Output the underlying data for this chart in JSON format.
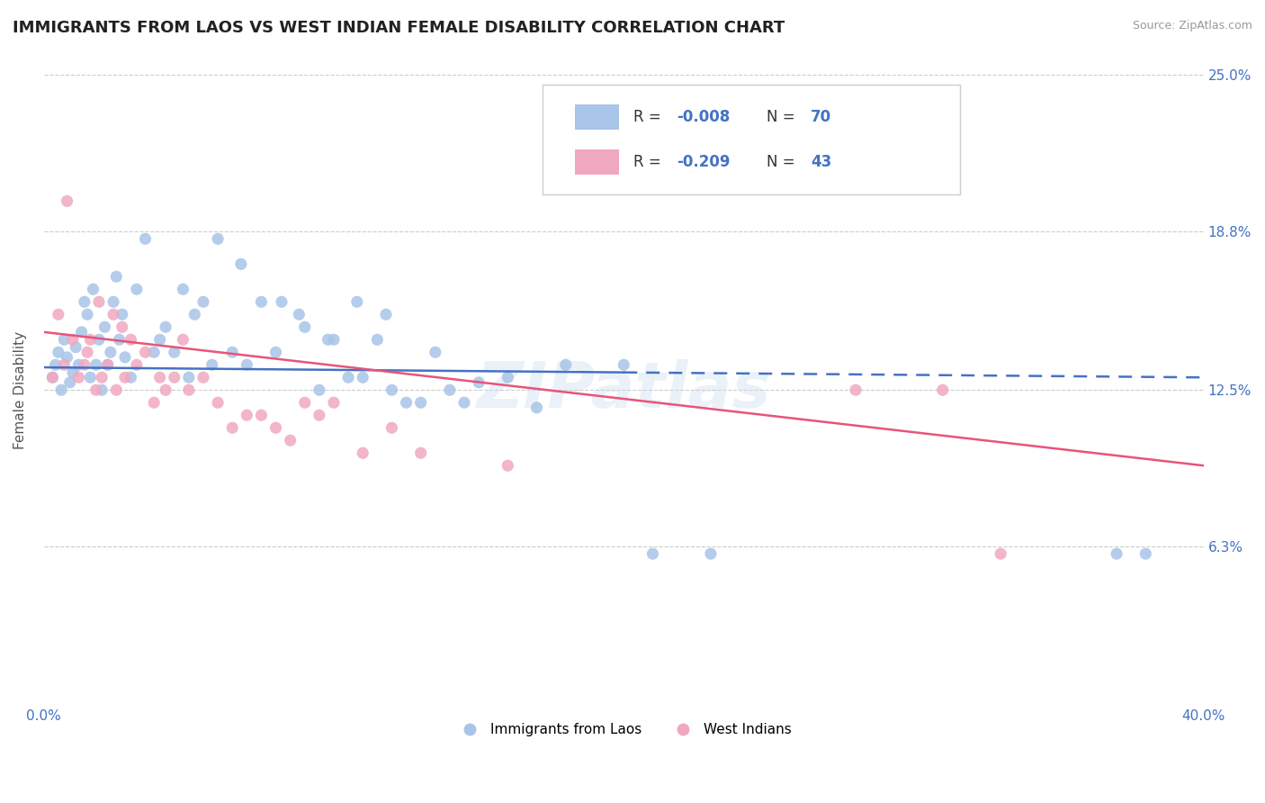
{
  "title": "IMMIGRANTS FROM LAOS VS WEST INDIAN FEMALE DISABILITY CORRELATION CHART",
  "source": "Source: ZipAtlas.com",
  "ylabel": "Female Disability",
  "xlim": [
    0.0,
    0.4
  ],
  "ylim": [
    0.0,
    0.25
  ],
  "yticks": [
    0.063,
    0.125,
    0.188,
    0.25
  ],
  "ytick_labels": [
    "6.3%",
    "12.5%",
    "18.8%",
    "25.0%"
  ],
  "xticks": [
    0.0,
    0.1,
    0.2,
    0.3,
    0.4
  ],
  "xtick_labels": [
    "0.0%",
    "",
    "",
    "",
    "40.0%"
  ],
  "legend_blue_r": "-0.008",
  "legend_blue_n": "70",
  "legend_pink_r": "-0.209",
  "legend_pink_n": "43",
  "blue_color": "#a8c4e8",
  "pink_color": "#f0a8c0",
  "blue_line_color": "#4472c4",
  "pink_line_color": "#e8547a",
  "label_color": "#4472c4",
  "watermark": "ZIPatlas",
  "blue_line_x0": 0.0,
  "blue_line_y0": 0.134,
  "blue_line_x1": 0.4,
  "blue_line_y1": 0.13,
  "blue_line_solid_end": 0.2,
  "pink_line_x0": 0.0,
  "pink_line_y0": 0.148,
  "pink_line_x1": 0.4,
  "pink_line_y1": 0.095,
  "blue_scatter_x": [
    0.003,
    0.004,
    0.005,
    0.006,
    0.007,
    0.008,
    0.009,
    0.01,
    0.011,
    0.012,
    0.013,
    0.014,
    0.015,
    0.016,
    0.017,
    0.018,
    0.019,
    0.02,
    0.021,
    0.022,
    0.023,
    0.024,
    0.025,
    0.026,
    0.027,
    0.028,
    0.03,
    0.032,
    0.035,
    0.038,
    0.04,
    0.042,
    0.045,
    0.048,
    0.05,
    0.052,
    0.055,
    0.058,
    0.06,
    0.065,
    0.068,
    0.07,
    0.075,
    0.08,
    0.082,
    0.088,
    0.09,
    0.095,
    0.098,
    0.1,
    0.105,
    0.108,
    0.11,
    0.115,
    0.118,
    0.12,
    0.125,
    0.13,
    0.135,
    0.14,
    0.145,
    0.15,
    0.16,
    0.17,
    0.18,
    0.2,
    0.21,
    0.23,
    0.37,
    0.38
  ],
  "blue_scatter_y": [
    0.13,
    0.135,
    0.14,
    0.125,
    0.145,
    0.138,
    0.128,
    0.132,
    0.142,
    0.135,
    0.148,
    0.16,
    0.155,
    0.13,
    0.165,
    0.135,
    0.145,
    0.125,
    0.15,
    0.135,
    0.14,
    0.16,
    0.17,
    0.145,
    0.155,
    0.138,
    0.13,
    0.165,
    0.185,
    0.14,
    0.145,
    0.15,
    0.14,
    0.165,
    0.13,
    0.155,
    0.16,
    0.135,
    0.185,
    0.14,
    0.175,
    0.135,
    0.16,
    0.14,
    0.16,
    0.155,
    0.15,
    0.125,
    0.145,
    0.145,
    0.13,
    0.16,
    0.13,
    0.145,
    0.155,
    0.125,
    0.12,
    0.12,
    0.14,
    0.125,
    0.12,
    0.128,
    0.13,
    0.118,
    0.135,
    0.135,
    0.06,
    0.06,
    0.06,
    0.06
  ],
  "pink_scatter_x": [
    0.003,
    0.005,
    0.007,
    0.008,
    0.01,
    0.012,
    0.014,
    0.015,
    0.016,
    0.018,
    0.019,
    0.02,
    0.022,
    0.024,
    0.025,
    0.027,
    0.028,
    0.03,
    0.032,
    0.035,
    0.038,
    0.04,
    0.042,
    0.045,
    0.048,
    0.05,
    0.055,
    0.06,
    0.065,
    0.07,
    0.075,
    0.08,
    0.085,
    0.09,
    0.095,
    0.1,
    0.11,
    0.12,
    0.13,
    0.16,
    0.28,
    0.31,
    0.33
  ],
  "pink_scatter_y": [
    0.13,
    0.155,
    0.135,
    0.2,
    0.145,
    0.13,
    0.135,
    0.14,
    0.145,
    0.125,
    0.16,
    0.13,
    0.135,
    0.155,
    0.125,
    0.15,
    0.13,
    0.145,
    0.135,
    0.14,
    0.12,
    0.13,
    0.125,
    0.13,
    0.145,
    0.125,
    0.13,
    0.12,
    0.11,
    0.115,
    0.115,
    0.11,
    0.105,
    0.12,
    0.115,
    0.12,
    0.1,
    0.11,
    0.1,
    0.095,
    0.125,
    0.125,
    0.06
  ]
}
